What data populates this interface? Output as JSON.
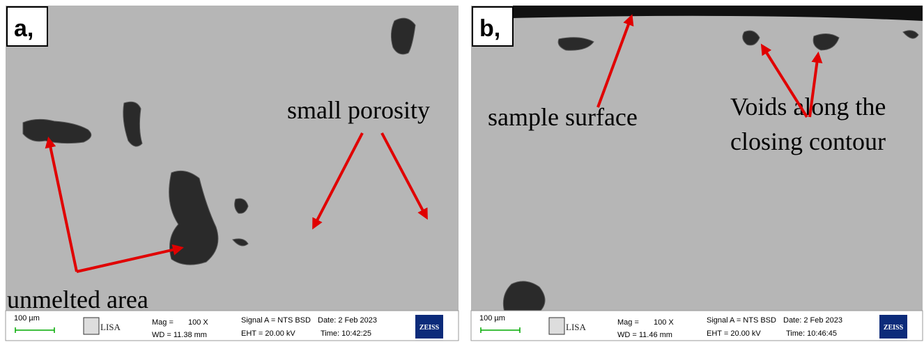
{
  "panels": [
    {
      "label": "a,",
      "annotations": [
        "small porosity",
        "unmelted area"
      ],
      "info": {
        "scale": "100 µm",
        "logo": "LISA",
        "mag_label": "Mag =",
        "mag": "100 X",
        "wd": "WD = 11.38 mm",
        "signal": "Signal A = NTS BSD",
        "date": "Date: 2 Feb 2023",
        "eht": "EHT = 20.00 kV",
        "time": "Time: 10:42:25",
        "brand": "ZEISS"
      }
    },
    {
      "label": "b,",
      "annotations": [
        "sample surface",
        "Voids along the",
        "closing contour"
      ],
      "info": {
        "scale": "100 µm",
        "logo": "LISA",
        "mag_label": "Mag =",
        "mag": "100 X",
        "wd": "WD = 11.46 mm",
        "signal": "Signal A = NTS BSD",
        "date": "Date: 2 Feb 2023",
        "eht": "EHT = 20.00 kV",
        "time": "Time: 10:46:45",
        "brand": "ZEISS"
      }
    }
  ]
}
